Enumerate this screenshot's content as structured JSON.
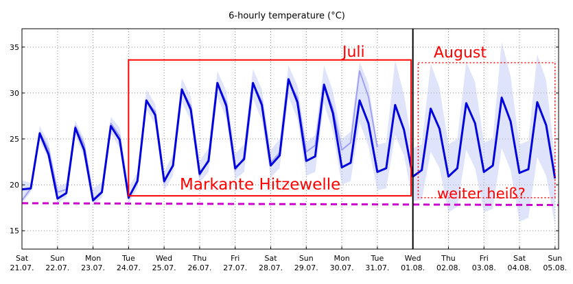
{
  "chart_data": {
    "type": "line",
    "title": "6-hourly temperature (°C)",
    "xlabel": "",
    "ylabel": "",
    "ylim": [
      13,
      37
    ],
    "xlim": [
      0,
      15.1
    ],
    "yticks": [
      15,
      20,
      25,
      30,
      35
    ],
    "grid": true,
    "x_unit_note": "",
    "day_ticks": [
      {
        "day": "Sat",
        "date": "21.07."
      },
      {
        "day": "Sun",
        "date": "22.07."
      },
      {
        "day": "Mon",
        "date": "23.07."
      },
      {
        "day": "Tue",
        "date": "24.07."
      },
      {
        "day": "Wed",
        "date": "25.07."
      },
      {
        "day": "Thu",
        "date": "26.07."
      },
      {
        "day": "Fri",
        "date": "27.07."
      },
      {
        "day": "Sat",
        "date": "28.07."
      },
      {
        "day": "Sun",
        "date": "29.07."
      },
      {
        "day": "Mon",
        "date": "30.07."
      },
      {
        "day": "Tue",
        "date": "31.07."
      },
      {
        "day": "Wed",
        "date": "01.08."
      },
      {
        "day": "Thu",
        "date": "02.08."
      },
      {
        "day": "Fri",
        "date": "03.08."
      },
      {
        "day": "Sat",
        "date": "04.08."
      },
      {
        "day": "Sun",
        "date": "05.08."
      }
    ],
    "series": [
      {
        "color": "#0000dd",
        "points": [
          [
            0,
            19.5
          ],
          [
            0.25,
            19.6
          ],
          [
            0.5,
            25.6
          ],
          [
            0.75,
            23.3
          ],
          [
            1,
            18.5
          ],
          [
            1.25,
            19.1
          ],
          [
            1.5,
            26.2
          ],
          [
            1.75,
            23.8
          ],
          [
            2,
            18.3
          ],
          [
            2.25,
            19.2
          ],
          [
            2.5,
            26.4
          ],
          [
            2.75,
            24.9
          ],
          [
            3,
            18.6
          ],
          [
            3.25,
            20.4
          ],
          [
            3.5,
            29.2
          ],
          [
            3.75,
            27.6
          ],
          [
            4,
            20.4
          ],
          [
            4.25,
            22.1
          ],
          [
            4.5,
            30.4
          ],
          [
            4.75,
            28.2
          ],
          [
            5,
            21.2
          ],
          [
            5.25,
            22.6
          ],
          [
            5.5,
            31.1
          ],
          [
            5.75,
            28.6
          ],
          [
            6,
            21.8
          ],
          [
            6.25,
            22.8
          ],
          [
            6.5,
            31.1
          ],
          [
            6.75,
            28.7
          ],
          [
            7,
            22.1
          ],
          [
            7.25,
            23.2
          ],
          [
            7.5,
            31.5
          ],
          [
            7.75,
            29.0
          ],
          [
            8,
            22.6
          ],
          [
            8.25,
            23.1
          ],
          [
            8.5,
            30.9
          ],
          [
            8.75,
            27.8
          ],
          [
            9,
            21.9
          ],
          [
            9.25,
            22.4
          ],
          [
            9.5,
            29.2
          ],
          [
            9.75,
            26.7
          ],
          [
            10,
            21.4
          ],
          [
            10.25,
            21.8
          ],
          [
            10.5,
            28.7
          ],
          [
            10.75,
            26.0
          ],
          [
            11,
            20.9
          ],
          [
            11.25,
            21.6
          ],
          [
            11.5,
            28.3
          ],
          [
            11.75,
            26.1
          ],
          [
            12,
            20.9
          ],
          [
            12.25,
            21.8
          ],
          [
            12.5,
            28.9
          ],
          [
            12.75,
            26.7
          ],
          [
            13,
            21.4
          ],
          [
            13.25,
            22.1
          ],
          [
            13.5,
            29.5
          ],
          [
            13.75,
            26.9
          ],
          [
            14,
            21.3
          ],
          [
            14.25,
            21.7
          ],
          [
            14.5,
            29.0
          ],
          [
            14.75,
            26.5
          ],
          [
            15,
            20.7
          ]
        ]
      },
      {
        "color": "#9090ee",
        "points": [
          [
            0,
            18.3
          ],
          [
            0.25,
            19.6
          ],
          [
            0.5,
            25.7
          ],
          [
            0.75,
            23.9
          ],
          [
            1,
            19.2
          ],
          [
            1.25,
            19.5
          ],
          [
            1.5,
            26.4
          ],
          [
            1.75,
            24.4
          ],
          [
            2,
            18.4
          ],
          [
            2.25,
            19.3
          ],
          [
            2.5,
            26.7
          ],
          [
            2.75,
            25.3
          ],
          [
            3,
            18.5
          ],
          [
            3.25,
            20.6
          ],
          [
            3.5,
            29.1
          ],
          [
            3.75,
            28.0
          ],
          [
            4,
            20.2
          ],
          [
            4.25,
            22.2
          ],
          [
            4.5,
            30.3
          ],
          [
            4.75,
            28.6
          ],
          [
            5,
            21.0
          ],
          [
            5.25,
            22.8
          ],
          [
            5.5,
            31.0
          ],
          [
            5.75,
            29.0
          ],
          [
            6,
            21.6
          ],
          [
            6.25,
            23.0
          ],
          [
            6.5,
            31.0
          ],
          [
            6.75,
            29.1
          ],
          [
            7,
            22.4
          ],
          [
            7.25,
            23.5
          ],
          [
            7.5,
            31.3
          ],
          [
            7.75,
            29.5
          ],
          [
            8,
            23.6
          ],
          [
            8.25,
            24.3
          ],
          [
            8.5,
            31.0
          ],
          [
            8.75,
            28.3
          ],
          [
            9,
            23.8
          ],
          [
            9.25,
            24.6
          ],
          [
            9.5,
            32.4
          ],
          [
            9.75,
            29.6
          ],
          [
            10,
            24.1
          ]
        ]
      }
    ],
    "band": {
      "color": "#b8c4f4",
      "points": [
        [
          0,
          18.0,
          20.5
        ],
        [
          0.25,
          19.2,
          20.2
        ],
        [
          0.5,
          24.8,
          26.4
        ],
        [
          0.75,
          22.8,
          24.6
        ],
        [
          1,
          18.0,
          19.8
        ],
        [
          1.25,
          18.6,
          20.2
        ],
        [
          1.5,
          25.4,
          27.0
        ],
        [
          1.75,
          23.0,
          25.0
        ],
        [
          2,
          17.8,
          19.6
        ],
        [
          2.25,
          18.6,
          20.3
        ],
        [
          2.5,
          25.6,
          27.4
        ],
        [
          2.75,
          24.0,
          26.2
        ],
        [
          3,
          18.0,
          19.8
        ],
        [
          3.25,
          19.6,
          21.3
        ],
        [
          3.5,
          28.2,
          30.4
        ],
        [
          3.75,
          26.6,
          28.8
        ],
        [
          4,
          19.4,
          21.4
        ],
        [
          4.25,
          21.0,
          23.3
        ],
        [
          4.5,
          29.0,
          31.6
        ],
        [
          4.75,
          27.0,
          29.6
        ],
        [
          5,
          20.2,
          22.6
        ],
        [
          5.25,
          21.4,
          24.0
        ],
        [
          5.5,
          29.6,
          32.4
        ],
        [
          5.75,
          27.2,
          30.2
        ],
        [
          6,
          20.6,
          23.4
        ],
        [
          6.25,
          21.4,
          24.4
        ],
        [
          6.5,
          29.4,
          32.6
        ],
        [
          6.75,
          27.0,
          30.4
        ],
        [
          7,
          20.8,
          23.8
        ],
        [
          7.25,
          21.8,
          25.0
        ],
        [
          7.5,
          29.6,
          33.0
        ],
        [
          7.75,
          27.2,
          30.8
        ],
        [
          8,
          21.0,
          24.6
        ],
        [
          8.25,
          21.4,
          25.4
        ],
        [
          8.5,
          28.8,
          33.0
        ],
        [
          8.75,
          25.8,
          30.2
        ],
        [
          9,
          20.0,
          25.0
        ],
        [
          9.25,
          20.4,
          25.8
        ],
        [
          9.5,
          26.8,
          33.4
        ],
        [
          9.75,
          24.2,
          31.0
        ],
        [
          10,
          19.4,
          24.4
        ],
        [
          10.25,
          19.6,
          24.6
        ],
        [
          10.5,
          25.4,
          33.6
        ],
        [
          10.75,
          23.2,
          29.8
        ],
        [
          11,
          18.2,
          24.0
        ],
        [
          11.25,
          18.4,
          24.4
        ],
        [
          11.5,
          23.6,
          33.2
        ],
        [
          11.75,
          21.8,
          30.6
        ],
        [
          12,
          17.0,
          24.4
        ],
        [
          12.25,
          17.6,
          25.0
        ],
        [
          12.5,
          23.8,
          33.4
        ],
        [
          12.75,
          21.8,
          31.2
        ],
        [
          13,
          17.0,
          24.6
        ],
        [
          13.25,
          17.4,
          25.0
        ],
        [
          13.5,
          24.0,
          35.6
        ],
        [
          13.75,
          21.6,
          31.8
        ],
        [
          14,
          16.0,
          24.4
        ],
        [
          14.25,
          16.4,
          24.8
        ],
        [
          14.5,
          23.0,
          34.2
        ],
        [
          14.75,
          21.0,
          31.4
        ],
        [
          15,
          15.6,
          22.6
        ]
      ]
    },
    "threshold": {
      "color": "#cc00cc",
      "from": 18.0,
      "to": 17.8
    },
    "vline": {
      "x": 11.0,
      "color": "#000000"
    },
    "annotations": {
      "color": "#ff0000",
      "label_juli": "Juli",
      "label_august": "August",
      "label_hitzewelle": "Markante Hitzewelle",
      "label_heiss": "weiter heiß?",
      "box_juli": {
        "x1": 3.0,
        "x2": 10.95,
        "y1": 18.8,
        "y2": 33.6
      },
      "box_august": {
        "x1": 11.15,
        "x2": 15.0,
        "y1": 18.6,
        "y2": 33.3
      }
    }
  }
}
